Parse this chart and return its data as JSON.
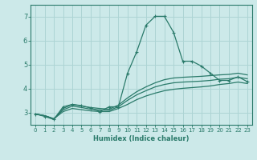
{
  "title": "",
  "xlabel": "Humidex (Indice chaleur)",
  "background_color": "#cce9e9",
  "grid_color": "#add4d4",
  "line_color": "#2a7a6a",
  "xlim": [
    -0.5,
    23.5
  ],
  "ylim": [
    2.5,
    7.5
  ],
  "yticks": [
    3,
    4,
    5,
    6,
    7
  ],
  "xticks": [
    0,
    1,
    2,
    3,
    4,
    5,
    6,
    7,
    8,
    9,
    10,
    11,
    12,
    13,
    14,
    15,
    16,
    17,
    18,
    19,
    20,
    21,
    22,
    23
  ],
  "series": [
    {
      "x": [
        0,
        1,
        2,
        3,
        4,
        5,
        6,
        7,
        8,
        9,
        10,
        11,
        12,
        13,
        14,
        15,
        16,
        17,
        18,
        19,
        20,
        21,
        22,
        23
      ],
      "y": [
        2.95,
        2.85,
        2.72,
        3.25,
        3.35,
        3.3,
        3.2,
        3.05,
        3.25,
        3.25,
        4.65,
        5.55,
        6.65,
        7.02,
        7.02,
        6.35,
        5.15,
        5.15,
        4.95,
        4.65,
        4.35,
        4.35,
        4.5,
        4.3
      ],
      "marker": true
    },
    {
      "x": [
        0,
        1,
        2,
        3,
        4,
        5,
        6,
        7,
        8,
        9,
        10,
        11,
        12,
        13,
        14,
        15,
        16,
        17,
        18,
        19,
        20,
        21,
        22,
        23
      ],
      "y": [
        2.95,
        2.88,
        2.75,
        3.05,
        3.18,
        3.13,
        3.08,
        3.05,
        3.05,
        3.18,
        3.35,
        3.55,
        3.7,
        3.82,
        3.92,
        3.98,
        4.02,
        4.05,
        4.08,
        4.12,
        4.18,
        4.22,
        4.28,
        4.22
      ],
      "marker": false
    },
    {
      "x": [
        0,
        1,
        2,
        3,
        4,
        5,
        6,
        7,
        8,
        9,
        10,
        11,
        12,
        13,
        14,
        15,
        16,
        17,
        18,
        19,
        20,
        21,
        22,
        23
      ],
      "y": [
        2.95,
        2.88,
        2.75,
        3.12,
        3.28,
        3.22,
        3.15,
        3.12,
        3.1,
        3.25,
        3.52,
        3.75,
        3.92,
        4.08,
        4.18,
        4.25,
        4.28,
        4.3,
        4.32,
        4.35,
        4.4,
        4.42,
        4.48,
        4.42
      ],
      "marker": false
    },
    {
      "x": [
        0,
        1,
        2,
        3,
        4,
        5,
        6,
        7,
        8,
        9,
        10,
        11,
        12,
        13,
        14,
        15,
        16,
        17,
        18,
        19,
        20,
        21,
        22,
        23
      ],
      "y": [
        2.95,
        2.88,
        2.75,
        3.18,
        3.35,
        3.28,
        3.22,
        3.18,
        3.15,
        3.32,
        3.62,
        3.88,
        4.08,
        4.25,
        4.38,
        4.45,
        4.48,
        4.5,
        4.52,
        4.55,
        4.58,
        4.6,
        4.65,
        4.58
      ],
      "marker": false
    }
  ]
}
